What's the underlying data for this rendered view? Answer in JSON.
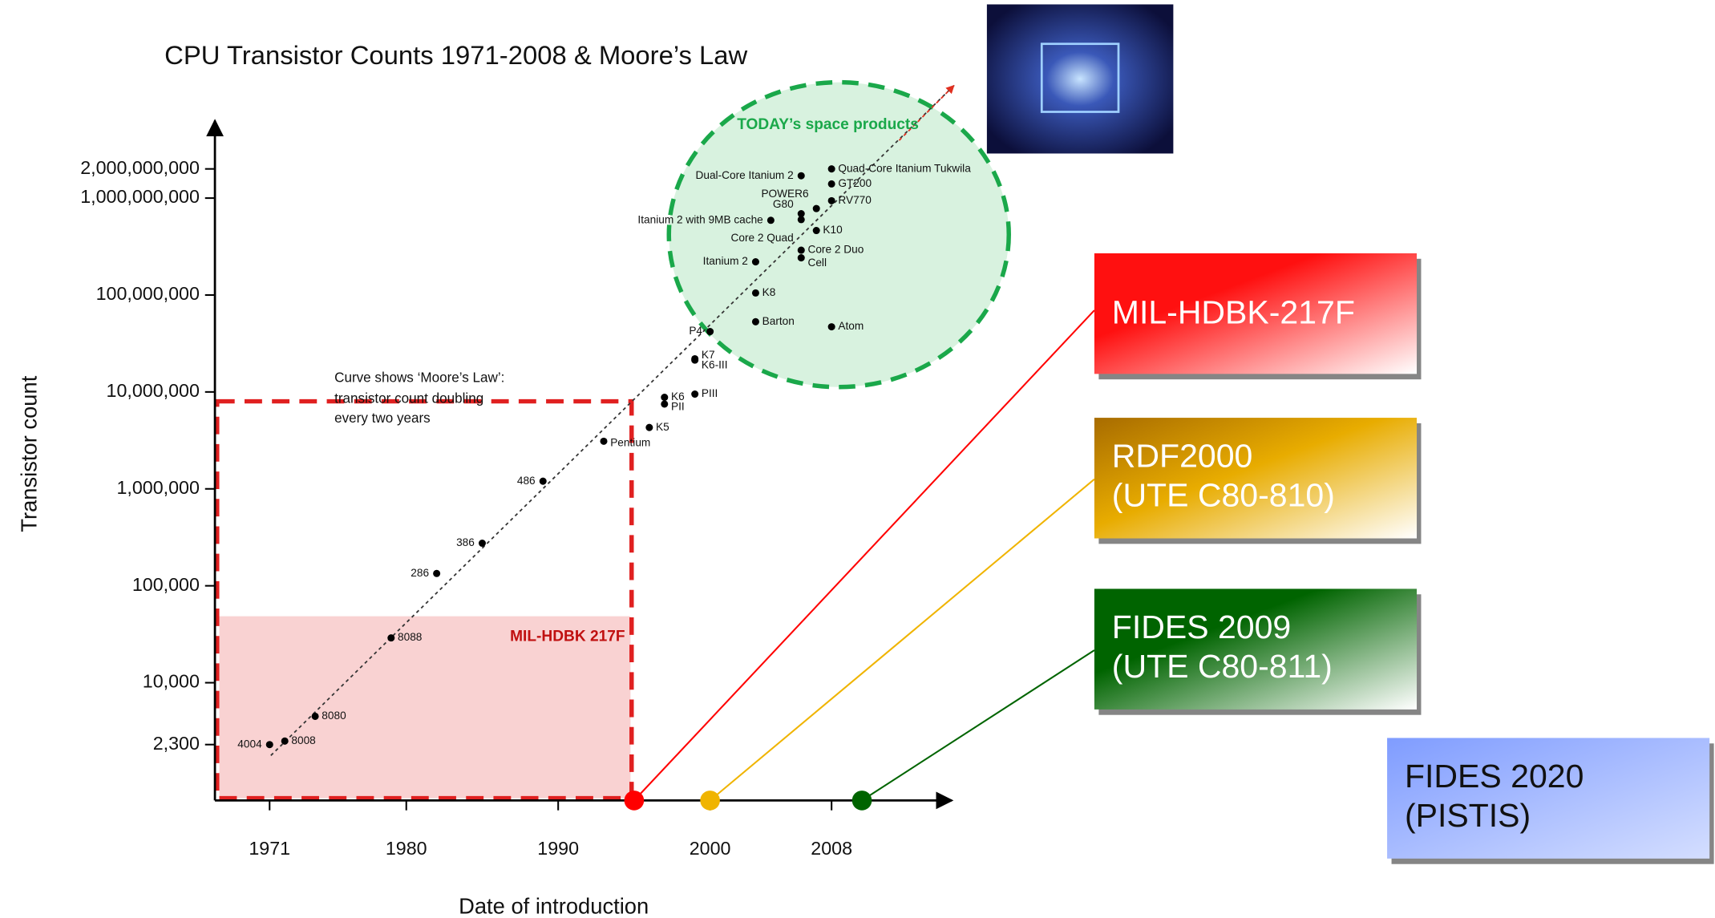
{
  "chart_data": {
    "type": "scatter",
    "title": "CPU Transistor Counts 1971-2008 & Moore’s Law",
    "xlabel": "Date of introduction",
    "ylabel": "Transistor count",
    "log_y": true,
    "point_color": "#000000",
    "point_labels": [
      "4004",
      "8008",
      "8080",
      "8088",
      "286",
      "386",
      "486",
      "Pentium",
      "K5",
      "K6",
      "PII",
      "PIII",
      "K7",
      "K6-III",
      "P4",
      "Barton",
      "K8",
      "Atom",
      "Itanium 2",
      "Core 2 Duo",
      "Cell",
      "K10",
      "Core 2 Quad",
      "Itanium 2 with 9MB cache",
      "G80",
      "POWER6",
      "RV770",
      "GT200",
      "Quad-Core Itanium Tukwila",
      "Dual-Core Itanium 2"
    ],
    "x": [
      1971,
      1972,
      1974,
      1979,
      1982,
      1985,
      1989,
      1993,
      1996,
      1997,
      1997,
      1999,
      1999,
      1999,
      2000,
      2003,
      2003,
      2008,
      2003,
      2006,
      2006,
      2007,
      2006,
      2004,
      2006,
      2007,
      2008,
      2008,
      2008,
      2006
    ],
    "values": [
      2300,
      2500,
      4500,
      29000,
      134000,
      275000,
      1200000,
      3100000,
      4300000,
      8800000,
      7500000,
      9500000,
      22000000,
      21300000,
      42000000,
      53000000,
      105000000,
      47000000,
      220000000,
      290000000,
      242000000,
      463000000,
      600000000,
      590000000,
      690000000,
      780000000,
      940000000,
      1400000000,
      2000000000,
      1700000000
    ],
    "xlim": [
      1967.4,
      2015.7
    ],
    "ylim": [
      610,
      6300000000
    ],
    "xticks": [
      1971,
      1980,
      1990,
      2000,
      2008
    ],
    "yticks": [
      {
        "value": 2300,
        "label": "2,300"
      },
      {
        "value": 10000,
        "label": "10,000"
      },
      {
        "value": 100000,
        "label": "100,000"
      },
      {
        "value": 1000000,
        "label": "1,000,000"
      },
      {
        "value": 10000000,
        "label": "10,000,000"
      },
      {
        "value": 100000000,
        "label": "100,000,000"
      },
      {
        "value": 1000000000,
        "label": "1,000,000,000"
      },
      {
        "value": 2000000000,
        "label": "2,000,000,000"
      }
    ],
    "moore_note": [
      "Curve shows ‘Moore’s Law’:",
      "transistor count doubling",
      "every two years"
    ],
    "today_label": "TODAY’s space products",
    "region_label": "MIL-HDBK 217F",
    "milestones": [
      {
        "lines": [
          "MIL-HDBK-217F"
        ],
        "x": 1995,
        "color": "#ff0000"
      },
      {
        "lines": [
          "RDF2000",
          "(UTE C80-810)"
        ],
        "x": 2000,
        "color": "#f0b400"
      },
      {
        "lines": [
          "FIDES 2009",
          "(UTE C80-811)"
        ],
        "x": 2010,
        "color": "#006400"
      },
      {
        "lines": [
          "FIDES 2020",
          "(PISTIS)"
        ]
      }
    ]
  }
}
